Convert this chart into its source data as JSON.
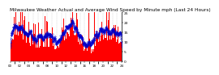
{
  "title": "Milwaukee Weather Actual and Average Wind Speed by Minute mph (Last 24 Hours)",
  "n_points": 1440,
  "y_max": 25,
  "y_min": 0,
  "y_ticks": [
    0,
    5,
    10,
    15,
    20,
    25
  ],
  "bar_color": "#FF0000",
  "avg_color": "#0000CC",
  "background_color": "#FFFFFF",
  "grid_color": "#AAAAAA",
  "title_fontsize": 4.2,
  "tick_fontsize": 3.2,
  "seed": 42
}
